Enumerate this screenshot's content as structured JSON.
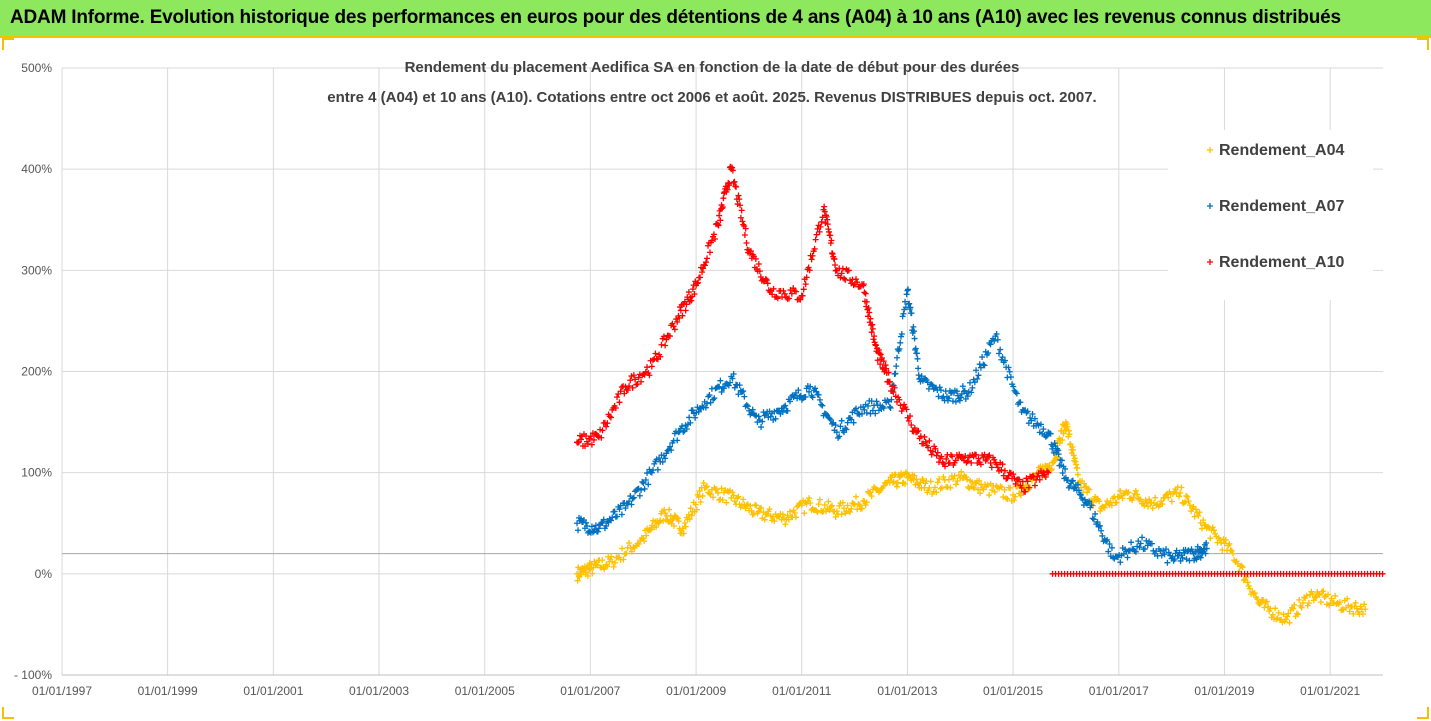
{
  "banner": {
    "title": "ADAM Informe. Evolution historique des performances en euros pour des détentions de 4 ans (A04) à 10 ans (A10) avec les revenus connus distribués"
  },
  "chart_data": {
    "type": "scatter",
    "title_line1": "Rendement du placement Aedifica SA en fonction de la date de début pour des durées",
    "title_line2": "entre 4 (A04) et 10 ans (A10). Cotations entre oct 2006 et août. 2025. Revenus DISTRIBUES depuis oct. 2007.",
    "x_ticks": [
      "01/01/1997",
      "01/01/1999",
      "01/01/2001",
      "01/01/2003",
      "01/01/2005",
      "01/01/2007",
      "01/01/2009",
      "01/01/2011",
      "01/01/2013",
      "01/01/2015",
      "01/01/2017",
      "01/01/2019",
      "01/01/2021"
    ],
    "x_range": [
      "1997-01-01",
      "2022-01-01"
    ],
    "y_ticks": [
      "- 100%",
      "0%",
      "100%",
      "200%",
      "300%",
      "400%",
      "500%"
    ],
    "y_range": [
      -100,
      500
    ],
    "reference_line": 20,
    "grid": true,
    "legend_position": "right",
    "series": [
      {
        "name": "Rendement_A04",
        "color": "#ffc000",
        "points": [
          [
            "2006-10-01",
            0
          ],
          [
            "2007-01-01",
            5
          ],
          [
            "2007-06-01",
            12
          ],
          [
            "2008-01-01",
            35
          ],
          [
            "2008-06-01",
            60
          ],
          [
            "2008-10-01",
            45
          ],
          [
            "2009-03-01",
            85
          ],
          [
            "2009-09-01",
            75
          ],
          [
            "2010-03-01",
            60
          ],
          [
            "2010-09-01",
            55
          ],
          [
            "2011-03-01",
            70
          ],
          [
            "2011-09-01",
            62
          ],
          [
            "2012-03-01",
            72
          ],
          [
            "2012-09-01",
            90
          ],
          [
            "2013-01-01",
            95
          ],
          [
            "2013-06-01",
            85
          ],
          [
            "2014-01-01",
            95
          ],
          [
            "2014-06-01",
            85
          ],
          [
            "2015-01-01",
            78
          ],
          [
            "2015-06-01",
            95
          ],
          [
            "2015-10-01",
            110
          ],
          [
            "2016-01-01",
            150
          ],
          [
            "2016-04-01",
            90
          ],
          [
            "2016-09-01",
            65
          ],
          [
            "2017-03-01",
            80
          ],
          [
            "2017-09-01",
            70
          ],
          [
            "2018-03-01",
            80
          ],
          [
            "2018-09-01",
            45
          ],
          [
            "2019-03-01",
            20
          ],
          [
            "2019-09-01",
            -30
          ],
          [
            "2020-03-01",
            -45
          ],
          [
            "2020-09-01",
            -20
          ],
          [
            "2021-03-01",
            -30
          ],
          [
            "2021-09-01",
            -35
          ]
        ]
      },
      {
        "name": "Rendement_A07",
        "color": "#0070c0",
        "points": [
          [
            "2006-10-01",
            50
          ],
          [
            "2007-03-01",
            45
          ],
          [
            "2007-09-01",
            65
          ],
          [
            "2008-03-01",
            100
          ],
          [
            "2008-09-01",
            140
          ],
          [
            "2009-03-01",
            170
          ],
          [
            "2009-09-01",
            195
          ],
          [
            "2010-03-01",
            150
          ],
          [
            "2010-09-01",
            165
          ],
          [
            "2011-03-01",
            185
          ],
          [
            "2011-09-01",
            140
          ],
          [
            "2012-03-01",
            165
          ],
          [
            "2012-09-01",
            165
          ],
          [
            "2013-01-01",
            280
          ],
          [
            "2013-04-01",
            190
          ],
          [
            "2013-10-01",
            175
          ],
          [
            "2014-03-01",
            180
          ],
          [
            "2014-09-01",
            235
          ],
          [
            "2015-03-01",
            160
          ],
          [
            "2015-09-01",
            140
          ],
          [
            "2016-01-01",
            95
          ],
          [
            "2016-06-01",
            70
          ],
          [
            "2016-12-01",
            15
          ],
          [
            "2017-06-01",
            30
          ],
          [
            "2018-01-01",
            15
          ],
          [
            "2018-06-01",
            20
          ],
          [
            "2018-09-01",
            25
          ]
        ]
      },
      {
        "name": "Rendement_A10",
        "color": "#ff0000",
        "points": [
          [
            "2006-10-01",
            130
          ],
          [
            "2007-03-01",
            135
          ],
          [
            "2007-09-01",
            185
          ],
          [
            "2008-03-01",
            205
          ],
          [
            "2008-09-01",
            255
          ],
          [
            "2009-01-01",
            285
          ],
          [
            "2009-06-01",
            345
          ],
          [
            "2009-09-01",
            400
          ],
          [
            "2010-01-01",
            320
          ],
          [
            "2010-06-01",
            280
          ],
          [
            "2011-01-01",
            275
          ],
          [
            "2011-06-01",
            360
          ],
          [
            "2011-09-01",
            300
          ],
          [
            "2012-03-01",
            285
          ],
          [
            "2012-06-01",
            220
          ],
          [
            "2012-09-01",
            190
          ],
          [
            "2013-03-01",
            140
          ],
          [
            "2013-09-01",
            110
          ],
          [
            "2014-03-01",
            115
          ],
          [
            "2014-09-01",
            110
          ],
          [
            "2015-03-01",
            85
          ],
          [
            "2015-09-01",
            100
          ]
        ],
        "flat_from": "2015-10-01",
        "flat_value": 0
      }
    ]
  }
}
